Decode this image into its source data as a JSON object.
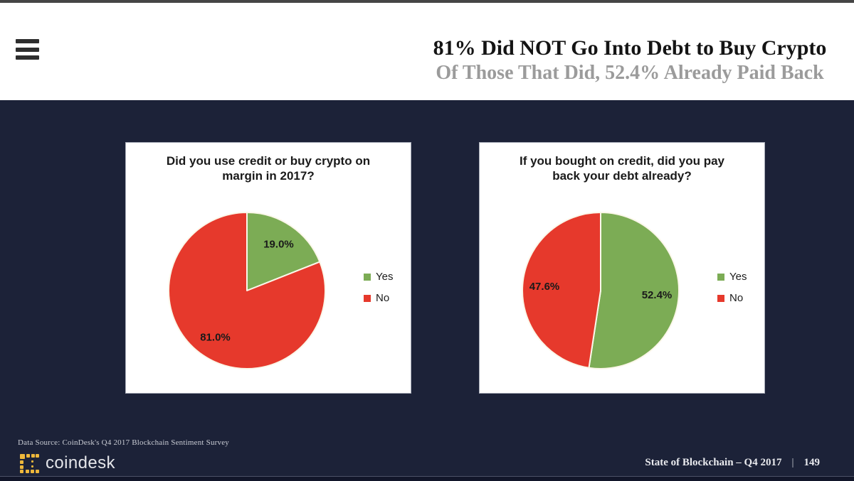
{
  "header": {
    "title": "81% Did NOT Go Into Debt to Buy Crypto",
    "subtitle": "Of Those That Did, 52.4% Already Paid Back"
  },
  "chart_data": [
    {
      "type": "pie",
      "title": "Did you use credit or buy crypto on margin in 2017?",
      "legend_position": "right",
      "start_angle_deg": -90,
      "direction": "clockwise",
      "slices": [
        {
          "label": "Yes",
          "value": 19.0,
          "display": "19.0%",
          "color": "#7CAC55"
        },
        {
          "label": "No",
          "value": 81.0,
          "display": "81.0%",
          "color": "#E6392C"
        }
      ]
    },
    {
      "type": "pie",
      "title": "If you bought on credit, did you pay back your debt already?",
      "legend_position": "right",
      "start_angle_deg": -90,
      "direction": "clockwise",
      "slices": [
        {
          "label": "Yes",
          "value": 52.4,
          "display": "52.4%",
          "color": "#7CAC55"
        },
        {
          "label": "No",
          "value": 47.6,
          "display": "47.6%",
          "color": "#E6392C"
        }
      ]
    }
  ],
  "footer": {
    "data_source": "Data Source: CoinDesk's Q4 2017 Blockchain Sentiment Survey",
    "logo_text": "coindesk",
    "report_title": "State of Blockchain – Q4 2017",
    "separator": "|",
    "page_number": "149"
  },
  "colors": {
    "body_background": "#1C2238",
    "header_background": "#FFFFFF",
    "pie_yes_green": "#7CAC55",
    "pie_no_red": "#E6392C",
    "slice_border_cream": "#FBF7EA",
    "brand_yellow": "#EDB73B",
    "title_black": "#141414",
    "subtitle_gray": "#9B9B9B"
  },
  "icons": {
    "menu": "hamburger-icon",
    "logo": "coindesk-dotted-square-icon"
  }
}
